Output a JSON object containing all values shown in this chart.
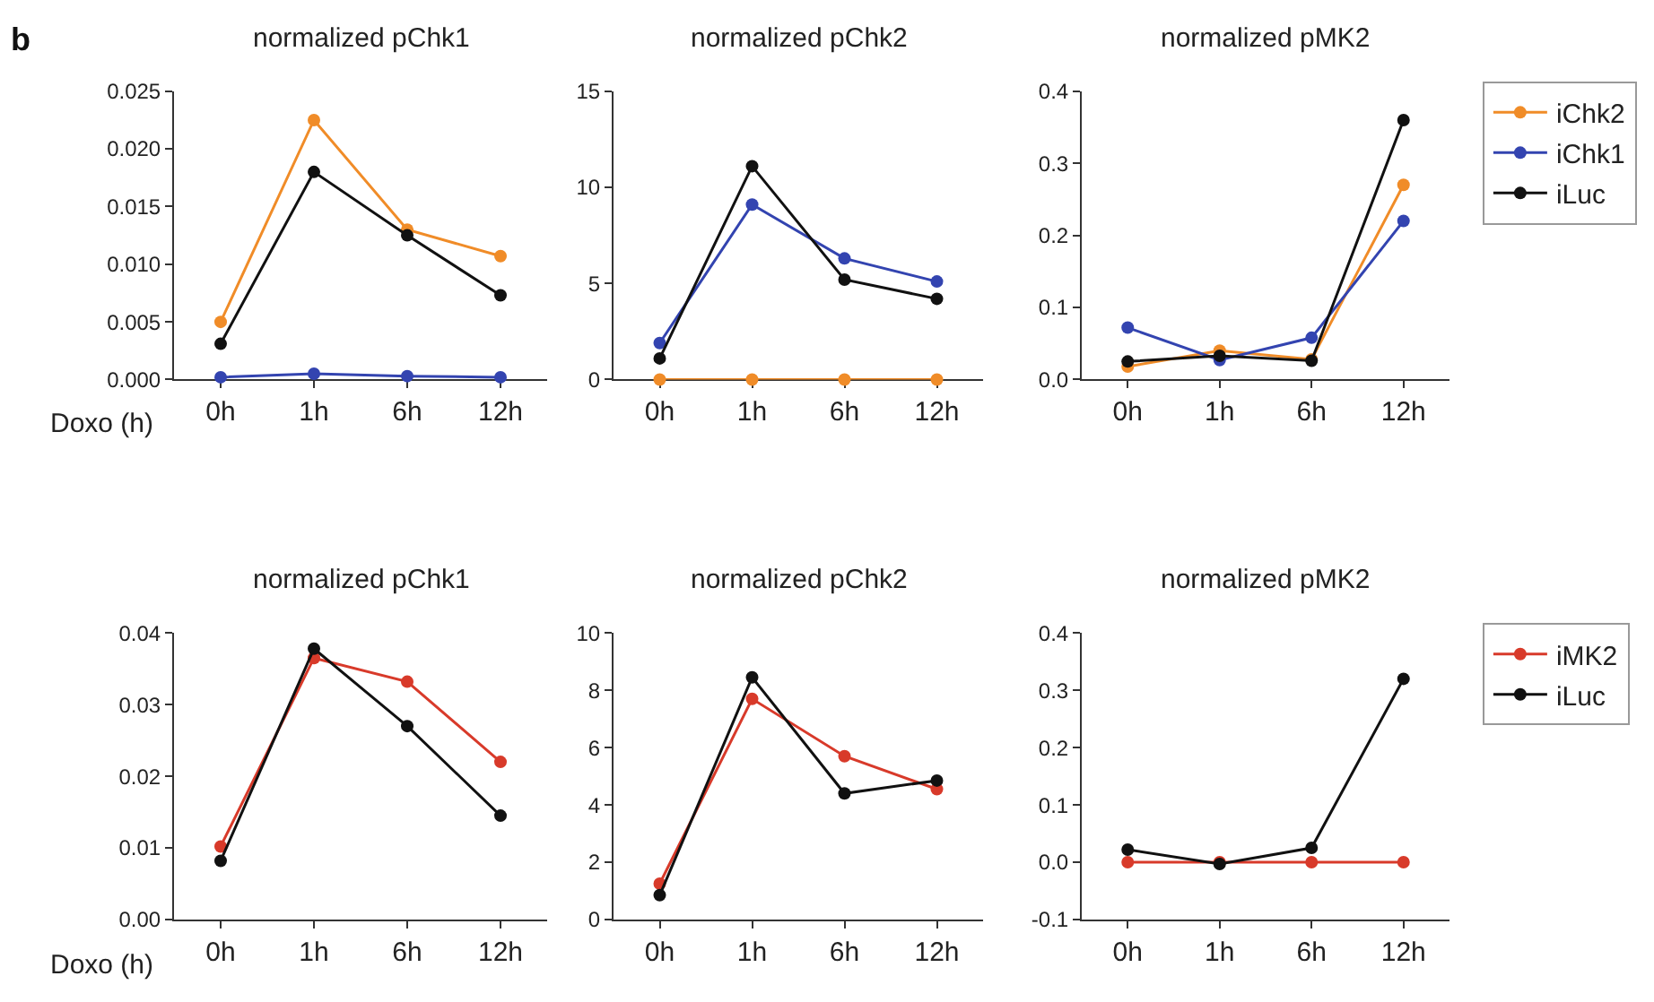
{
  "chart_data": [
    {
      "type": "line",
      "title": "normalized pChk1",
      "xlabel": "Doxo (h)",
      "annotations": [
        "b"
      ],
      "categories": [
        "0h",
        "1h",
        "6h",
        "12h"
      ],
      "marker": "circle",
      "line_style": "solid",
      "legend": false,
      "ylim": [
        0,
        0.025
      ],
      "yticks": [
        {
          "value": 0,
          "label": "0.000"
        },
        0.005,
        {
          "value": 0.01,
          "label": "0.010"
        },
        0.015,
        {
          "value": 0.02,
          "label": "0.020"
        },
        0.025
      ],
      "series": [
        {
          "color": "#f08c28",
          "values": [
            0.005,
            0.0225,
            0.013,
            0.0107
          ]
        },
        {
          "color": "#3344b0",
          "values": [
            0.0002,
            0.0005,
            0.0003,
            0.0002
          ]
        },
        {
          "color": "#111111",
          "values": [
            0.0031,
            0.018,
            0.0125,
            0.0073
          ]
        }
      ]
    },
    {
      "type": "line",
      "title": "normalized pChk2",
      "categories": [
        "0h",
        "1h",
        "6h",
        "12h"
      ],
      "marker": "circle",
      "line_style": "solid",
      "legend": false,
      "ylim": [
        0,
        15
      ],
      "yticks": [
        0,
        5,
        10,
        15
      ],
      "series": [
        {
          "color": "#f08c28",
          "values": [
            0,
            0,
            0,
            0
          ]
        },
        {
          "color": "#3344b0",
          "values": [
            1.9,
            9.1,
            6.3,
            5.1
          ]
        },
        {
          "color": "#111111",
          "values": [
            1.1,
            11.1,
            5.2,
            4.2
          ]
        }
      ]
    },
    {
      "type": "line",
      "title": "normalized pMK2",
      "categories": [
        "0h",
        "1h",
        "6h",
        "12h"
      ],
      "marker": "circle",
      "line_style": "solid",
      "legend": "right",
      "ylim": [
        0,
        0.4
      ],
      "yticks": [
        {
          "value": 0,
          "label": "0.0"
        },
        0.1,
        0.2,
        0.3,
        0.4
      ],
      "series": [
        {
          "name": "iChk2",
          "color": "#f08c28",
          "values": [
            0.018,
            0.04,
            0.028,
            0.27
          ]
        },
        {
          "name": "iChk1",
          "color": "#3344b0",
          "values": [
            0.072,
            0.027,
            0.058,
            0.22
          ]
        },
        {
          "name": "iLuc",
          "color": "#111111",
          "values": [
            0.025,
            0.033,
            0.026,
            0.36
          ]
        }
      ]
    },
    {
      "type": "line",
      "title": "normalized pChk1",
      "xlabel": "Doxo (h)",
      "categories": [
        "0h",
        "1h",
        "6h",
        "12h"
      ],
      "marker": "circle",
      "line_style": "solid",
      "legend": false,
      "ylim": [
        0,
        0.04
      ],
      "yticks": [
        {
          "value": 0,
          "label": "0.00"
        },
        0.01,
        0.02,
        0.03,
        0.04
      ],
      "series": [
        {
          "color": "#d83a2a",
          "values": [
            0.0102,
            0.0365,
            0.0332,
            0.022
          ]
        },
        {
          "color": "#111111",
          "values": [
            0.0082,
            0.0378,
            0.027,
            0.0145
          ]
        }
      ]
    },
    {
      "type": "line",
      "title": "normalized pChk2",
      "categories": [
        "0h",
        "1h",
        "6h",
        "12h"
      ],
      "marker": "circle",
      "line_style": "solid",
      "legend": false,
      "ylim": [
        0,
        10
      ],
      "yticks": [
        0,
        2,
        4,
        6,
        8,
        10
      ],
      "series": [
        {
          "color": "#d83a2a",
          "values": [
            1.25,
            7.7,
            5.7,
            4.55
          ]
        },
        {
          "color": "#111111",
          "values": [
            0.85,
            8.45,
            4.4,
            4.85
          ]
        }
      ]
    },
    {
      "type": "line",
      "title": "normalized pMK2",
      "categories": [
        "0h",
        "1h",
        "6h",
        "12h"
      ],
      "marker": "circle",
      "line_style": "solid",
      "legend": "right",
      "ylim": [
        -0.1,
        0.4
      ],
      "yticks": [
        -0.1,
        {
          "value": 0,
          "label": "0.0"
        },
        0.1,
        0.2,
        0.3,
        0.4
      ],
      "series": [
        {
          "name": "iMK2",
          "color": "#d83a2a",
          "values": [
            0,
            0,
            0,
            0
          ]
        },
        {
          "name": "iLuc",
          "color": "#111111",
          "values": [
            0.022,
            -0.003,
            0.025,
            0.32
          ]
        }
      ]
    }
  ]
}
